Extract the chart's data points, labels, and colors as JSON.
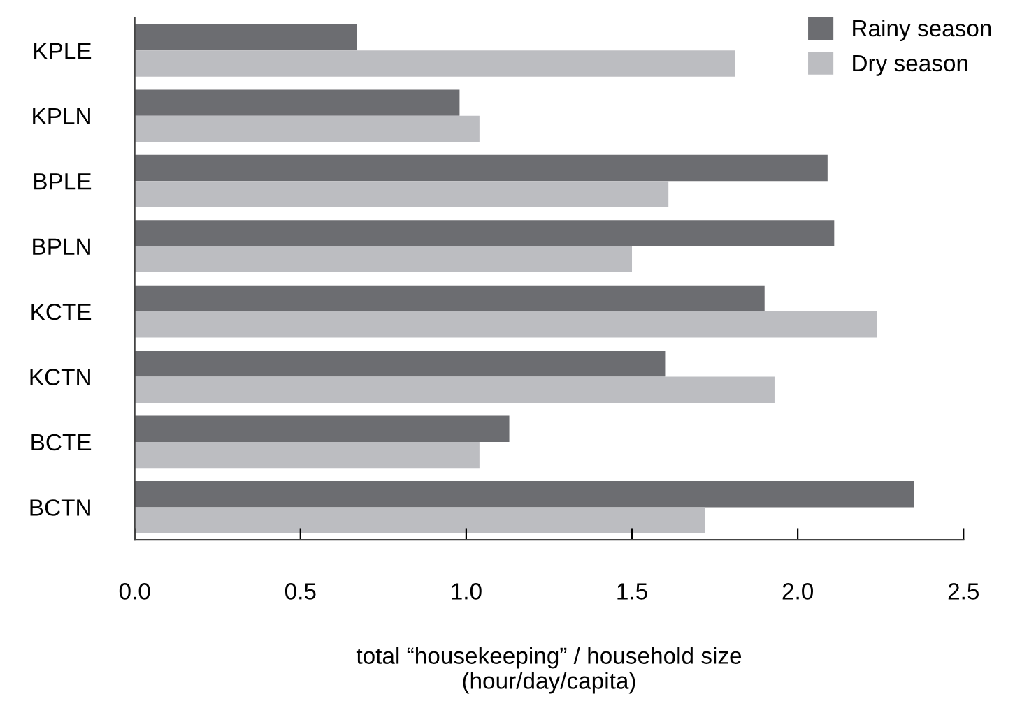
{
  "chart_data": {
    "type": "bar",
    "orientation": "horizontal",
    "categories": [
      "KPLE",
      "KPLN",
      "BPLE",
      "BPLN",
      "KCTE",
      "KCTN",
      "BCTE",
      "BCTN"
    ],
    "series": [
      {
        "name": "Rainy season",
        "color": "#6c6d71",
        "values": [
          0.67,
          0.98,
          2.09,
          2.11,
          1.9,
          1.6,
          1.13,
          2.35
        ]
      },
      {
        "name": "Dry season",
        "color": "#bcbdc1",
        "values": [
          1.81,
          1.04,
          1.61,
          1.5,
          2.24,
          1.93,
          1.04,
          1.72
        ]
      }
    ],
    "xlim": [
      0,
      2.5
    ],
    "xticks": [
      {
        "value": 0,
        "label": "0.0"
      },
      {
        "value": 0.5,
        "label": "0.5"
      },
      {
        "value": 1,
        "label": "1.0"
      },
      {
        "value": 1.5,
        "label": "1.5"
      },
      {
        "value": 2,
        "label": "2.0"
      },
      {
        "value": 2.5,
        "label": "2.5"
      }
    ],
    "xlabel": "total “housekeeping” / household size\n(hour/day/capita)",
    "legend": "top right",
    "grid": false
  }
}
